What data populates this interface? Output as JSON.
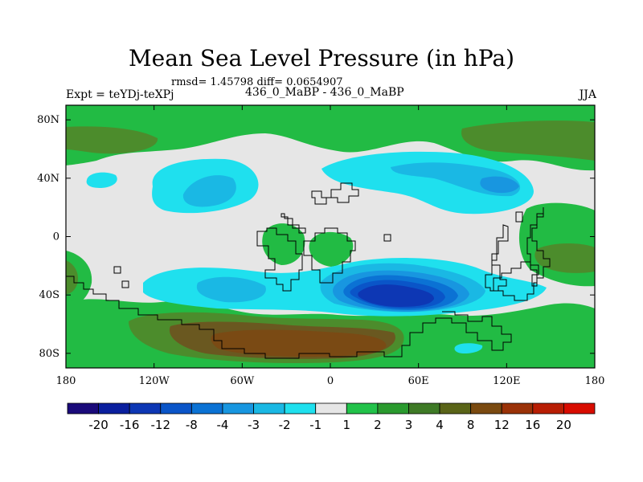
{
  "title": "Mean Sea Level Pressure (in hPa)",
  "stats": "rmsd= 1.45798 diff= 0.0654907",
  "experiment": "Expt = teYDj-teXPj",
  "subtitle": "436_0_MaBP - 436_0_MaBP",
  "season": "JJA",
  "lat_ticks": [
    {
      "lat": 80,
      "label": "80N"
    },
    {
      "lat": 40,
      "label": "40N"
    },
    {
      "lat": 0,
      "label": "0"
    },
    {
      "lat": -40,
      "label": "40S"
    },
    {
      "lat": -80,
      "label": "80S"
    }
  ],
  "lon_ticks": [
    {
      "lon": -180,
      "label": "180"
    },
    {
      "lon": -120,
      "label": "120W"
    },
    {
      "lon": -60,
      "label": "60W"
    },
    {
      "lon": 0,
      "label": "0"
    },
    {
      "lon": 60,
      "label": "60E"
    },
    {
      "lon": 120,
      "label": "120E"
    },
    {
      "lon": 180,
      "label": "180"
    }
  ],
  "colorbar": {
    "colors": [
      "#1a0a7a",
      "#0a1f9e",
      "#0d37b4",
      "#0a55c8",
      "#0b72d4",
      "#1896e0",
      "#1ab8e4",
      "#1fe0ee",
      "#e6e6e6",
      "#22c24a",
      "#2a9a2e",
      "#3e7a26",
      "#5a6418",
      "#7a4a10",
      "#9a3208",
      "#b81e04",
      "#d80c00"
    ],
    "labels": [
      "-20",
      "-16",
      "-12",
      "-8",
      "-4",
      "-3",
      "-2",
      "-1",
      "1",
      "2",
      "3",
      "4",
      "8",
      "12",
      "16",
      "20"
    ]
  },
  "field_colors": {
    "neutral": "#e6e6e6",
    "pos1": "#22bb44",
    "pos2": "#4c8c2c",
    "pos3": "#6a5820",
    "pos4": "#7a4a14",
    "neg1": "#1fe0ee",
    "neg2": "#1ab8e4",
    "neg3": "#1896e0",
    "neg4": "#0b72d4",
    "neg5": "#0a55c8",
    "neg6": "#0d37b4"
  }
}
